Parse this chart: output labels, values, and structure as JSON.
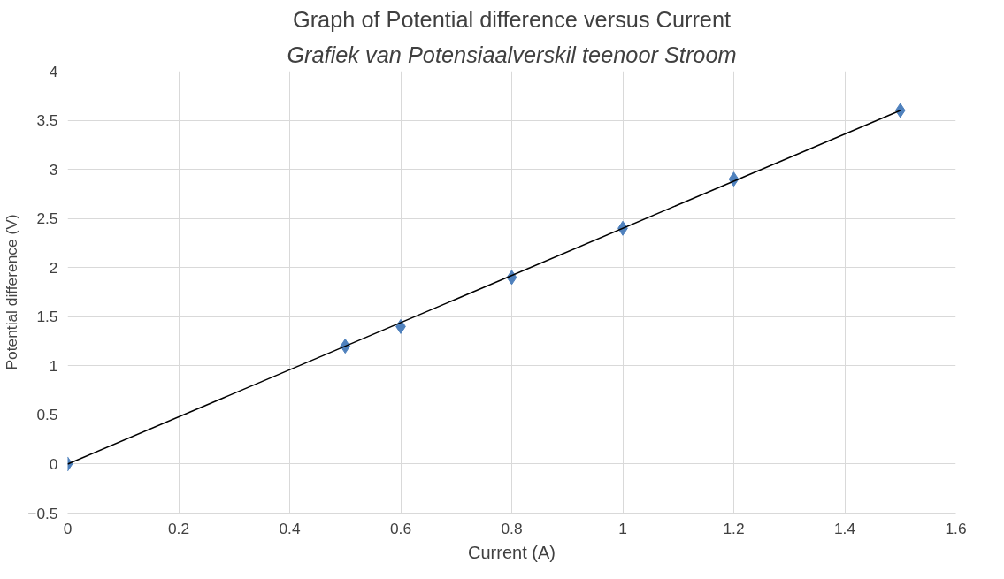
{
  "chart_data": {
    "type": "scatter",
    "title": "Graph of Potential difference versus Current",
    "subtitle": "Grafiek van Potensiaalverskil teenoor Stroom",
    "xlabel": "Current (A)",
    "ylabel": "Potential difference (V)",
    "x": [
      0,
      0.5,
      0.6,
      0.8,
      1,
      1.2,
      1.5
    ],
    "series": [
      {
        "color": "#4f81bd",
        "values": [
          0,
          1.2,
          1.4,
          1.9,
          2.4,
          2.9,
          3.6
        ]
      },
      {
        "type": "line",
        "color": "#000000",
        "x": [
          0,
          1.5
        ],
        "values": [
          0,
          3.6
        ],
        "marker": "none"
      }
    ],
    "marker": "diamond",
    "xlim": [
      0,
      1.6
    ],
    "xticks": [
      0,
      0.2,
      0.4,
      0.6,
      0.8,
      1,
      1.2,
      1.4,
      1.6
    ],
    "ylim": [
      -0.5,
      4
    ],
    "yticks": [
      -0.5,
      0,
      0.5,
      1,
      1.5,
      2,
      2.5,
      3,
      3.5,
      4
    ],
    "grid": true
  }
}
